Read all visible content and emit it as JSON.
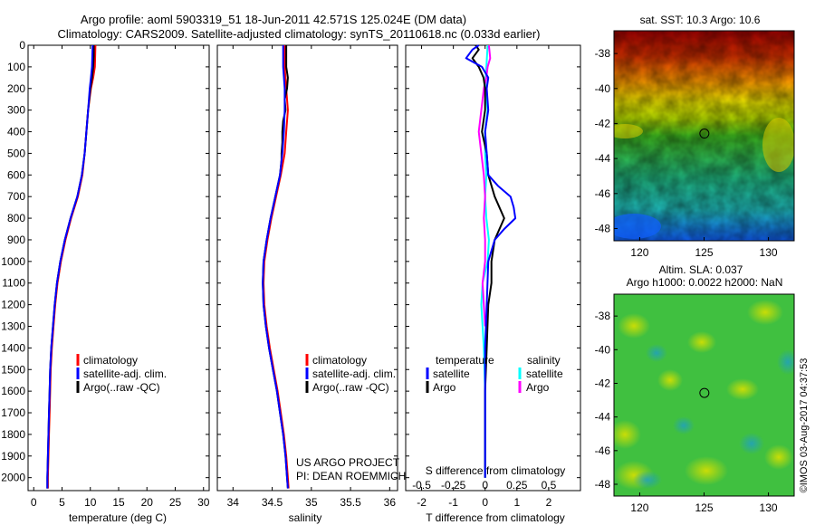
{
  "header": {
    "line1": "Argo profile: aoml 5903319_51 18-Jun-2011 42.571S 125.024E (DM data)",
    "line2": "Climatology: CARS2009. Satellite-adjusted climatology: synTS_20110618.nc (0.033d earlier)"
  },
  "colors": {
    "climatology": "#ff0000",
    "satellite": "#0000ff",
    "argo": "#000000",
    "salinity_satellite": "#00ffff",
    "salinity_argo": "#ff00ff"
  },
  "legend": {
    "climatology": "climatology",
    "satellite_adj": "satellite-adj. clim.",
    "argo_raw": "Argo(..raw -QC)",
    "temperature_title": "temperature",
    "salinity_title": "salinity",
    "satellite": "satellite",
    "argo": "Argo"
  },
  "project": {
    "line1": "US ARGO PROJECT",
    "line2": "PI: DEAN ROEMMICH"
  },
  "chart_data": [
    {
      "type": "line",
      "name": "temperature-profile",
      "xlabel": "temperature (deg C)",
      "ylabel": "",
      "xlim": [
        -1,
        31
      ],
      "ylim": [
        2060,
        0
      ],
      "xticks": [
        0,
        5,
        10,
        15,
        20,
        25,
        30
      ],
      "yticks": [
        0,
        100,
        200,
        300,
        400,
        500,
        600,
        700,
        800,
        900,
        1000,
        1100,
        1200,
        1300,
        1400,
        1500,
        1600,
        1700,
        1800,
        1900,
        2000
      ],
      "series": [
        {
          "name": "climatology",
          "depth": [
            0,
            100,
            150,
            200,
            300,
            400,
            500,
            600,
            700,
            800,
            900,
            1000,
            1100,
            1200,
            1300,
            1400,
            1500,
            1600,
            1700,
            1800,
            1900,
            2000,
            2050
          ],
          "values": [
            10.9,
            10.8,
            10.5,
            10.1,
            9.6,
            9.3,
            9.0,
            8.6,
            7.8,
            6.6,
            5.6,
            4.8,
            4.2,
            3.8,
            3.5,
            3.2,
            3.0,
            2.9,
            2.8,
            2.7,
            2.6,
            2.5,
            2.5
          ]
        },
        {
          "name": "satellite-adj. clim.",
          "depth": [
            0,
            100,
            150,
            200,
            300,
            400,
            500,
            600,
            700,
            800,
            900,
            1000,
            1100,
            1200,
            1300,
            1400,
            1500,
            1600,
            1700,
            1800,
            1900,
            2000,
            2050
          ],
          "values": [
            10.4,
            10.3,
            10.1,
            9.9,
            9.6,
            9.3,
            9.0,
            8.5,
            7.7,
            6.5,
            5.5,
            4.7,
            4.1,
            3.7,
            3.4,
            3.1,
            2.9,
            2.8,
            2.7,
            2.6,
            2.5,
            2.4,
            2.4
          ]
        },
        {
          "name": "Argo(..raw -QC)",
          "depth": [
            0,
            50,
            100,
            150,
            200,
            300,
            400,
            500,
            600,
            700,
            800,
            900,
            1000,
            1100,
            1200,
            1300,
            1400,
            1500,
            1600,
            1700,
            1800,
            1900,
            2000,
            2050
          ],
          "values": [
            10.6,
            10.6,
            10.5,
            10.3,
            10.0,
            9.6,
            9.3,
            9.0,
            8.5,
            7.7,
            6.5,
            5.5,
            4.7,
            4.1,
            3.7,
            3.4,
            3.1,
            2.9,
            2.8,
            2.7,
            2.6,
            2.5,
            2.4,
            2.4
          ]
        }
      ]
    },
    {
      "type": "line",
      "name": "salinity-profile",
      "xlabel": "salinity",
      "ylabel": "",
      "xlim": [
        33.8,
        36.1
      ],
      "ylim": [
        2060,
        0
      ],
      "xticks": [
        34,
        34.5,
        35,
        35.5,
        36
      ],
      "xticklabels": [
        "34",
        "34.5",
        "35",
        "35.5",
        "36"
      ],
      "series": [
        {
          "name": "climatology",
          "depth": [
            0,
            100,
            200,
            300,
            400,
            500,
            600,
            700,
            800,
            900,
            1000,
            1100,
            1200,
            1300,
            1400,
            1500,
            1600,
            1700,
            1800,
            1900,
            2000,
            2050
          ],
          "values": [
            34.66,
            34.66,
            34.68,
            34.7,
            34.68,
            34.66,
            34.61,
            34.55,
            34.49,
            34.44,
            34.4,
            34.39,
            34.4,
            34.43,
            34.47,
            34.52,
            34.57,
            34.61,
            34.65,
            34.68,
            34.7,
            34.71
          ]
        },
        {
          "name": "satellite-adj. clim.",
          "depth": [
            0,
            100,
            200,
            300,
            400,
            500,
            600,
            700,
            800,
            900,
            1000,
            1100,
            1200,
            1300,
            1400,
            1500,
            1600,
            1700,
            1800,
            1900,
            2000,
            2050
          ],
          "values": [
            34.64,
            34.64,
            34.66,
            34.66,
            34.65,
            34.63,
            34.6,
            34.54,
            34.48,
            34.43,
            34.39,
            34.38,
            34.39,
            34.42,
            34.46,
            34.51,
            34.56,
            34.6,
            34.64,
            34.67,
            34.69,
            34.7
          ]
        },
        {
          "name": "Argo(..raw -QC)",
          "depth": [
            0,
            100,
            150,
            200,
            250,
            300,
            350,
            400,
            450,
            500,
            530,
            600,
            700,
            800,
            900,
            1000,
            1100,
            1200,
            1300,
            1400,
            1500,
            1600,
            1700,
            1800,
            1900,
            2000,
            2050
          ],
          "values": [
            34.68,
            34.68,
            34.7,
            34.69,
            34.66,
            34.67,
            34.64,
            34.63,
            34.63,
            34.62,
            34.62,
            34.6,
            34.54,
            34.48,
            34.43,
            34.39,
            34.38,
            34.39,
            34.42,
            34.46,
            34.51,
            34.56,
            34.6,
            34.64,
            34.67,
            34.69,
            34.7
          ]
        }
      ]
    },
    {
      "type": "line",
      "name": "difference-profile",
      "xlabel": "T difference from climatology",
      "xlabel_top": "S difference from climatology",
      "xlim": [
        -2.5,
        3.0
      ],
      "ylim": [
        2060,
        0
      ],
      "xticks": [
        -2,
        -1,
        0,
        1,
        2
      ],
      "xticklabels": [
        "-2",
        "-1",
        "0",
        "1",
        "2"
      ],
      "xticks_top": [
        -0.5,
        -0.25,
        0,
        0.25,
        0.5
      ],
      "xticklabels_top": [
        "-0.5",
        "-0.25",
        "0",
        "0.25",
        "0.5"
      ],
      "series": [
        {
          "name": "temperature satellite",
          "depth": [
            0,
            20,
            60,
            100,
            150,
            200,
            300,
            400,
            500,
            600,
            650,
            700,
            750,
            800,
            850,
            900,
            1000,
            1200,
            1400,
            1600,
            1800,
            2000
          ],
          "values": [
            -0.2,
            -0.4,
            -0.6,
            -0.1,
            0.1,
            0.05,
            0.1,
            0.0,
            0.05,
            0.1,
            0.4,
            0.8,
            0.9,
            0.95,
            0.6,
            0.3,
            0.1,
            0.05,
            0.0,
            0.0,
            0.0,
            0.0
          ]
        },
        {
          "name": "temperature Argo",
          "depth": [
            0,
            20,
            60,
            100,
            150,
            200,
            300,
            400,
            500,
            600,
            700,
            800,
            900,
            1000,
            1100,
            1200,
            1400,
            1600,
            1800,
            2000
          ],
          "values": [
            -0.3,
            -0.2,
            -0.4,
            -0.2,
            -0.05,
            0.0,
            0.0,
            -0.1,
            0.05,
            0.1,
            0.3,
            0.6,
            0.3,
            0.2,
            0.2,
            0.1,
            0.05,
            0.0,
            0.0,
            0.0
          ]
        },
        {
          "name": "salinity satellite",
          "depth": [
            0,
            100,
            200,
            300,
            400,
            500,
            600,
            700,
            800,
            900,
            1000,
            1100,
            1200,
            1400,
            1600,
            1800,
            2000
          ],
          "values": [
            0.02,
            0.01,
            0.0,
            0.02,
            0.0,
            0.0,
            0.01,
            0.0,
            0.01,
            0.03,
            0.02,
            -0.02,
            -0.03,
            -0.01,
            0.0,
            0.0,
            0.0
          ]
        },
        {
          "name": "salinity Argo",
          "depth": [
            0,
            60,
            100,
            150,
            200,
            300,
            400,
            500,
            600,
            700,
            800,
            900,
            1000,
            1100,
            1200,
            1300
          ],
          "values": [
            0.03,
            0.04,
            0.02,
            0.01,
            -0.01,
            -0.03,
            -0.05,
            -0.03,
            -0.01,
            0.0,
            -0.01,
            0.0,
            0.0,
            -0.02,
            -0.01,
            0.0
          ]
        }
      ]
    },
    {
      "type": "heatmap",
      "name": "sst-map",
      "title": "sat. SST: 10.3  Argo: 10.6",
      "xlim": [
        118,
        132
      ],
      "ylim": [
        -48.7,
        -36.7
      ],
      "xticks": [
        120,
        125,
        130
      ],
      "yticks": [
        -38,
        -40,
        -42,
        -44,
        -46,
        -48
      ],
      "marker": {
        "lon": 125.024,
        "lat": -42.571
      }
    },
    {
      "type": "heatmap",
      "name": "sla-map",
      "title_line1": "Altim. SLA: 0.037",
      "title_line2": "Argo h1000: 0.0022 h2000: NaN",
      "xlim": [
        118,
        132
      ],
      "ylim": [
        -48.7,
        -36.7
      ],
      "xticks": [
        120,
        125,
        130
      ],
      "yticks": [
        -38,
        -40,
        -42,
        -44,
        -46,
        -48
      ],
      "marker": {
        "lon": 125.024,
        "lat": -42.571
      }
    }
  ],
  "credit": "©IMOS 03-Aug-2017 04:37:53"
}
